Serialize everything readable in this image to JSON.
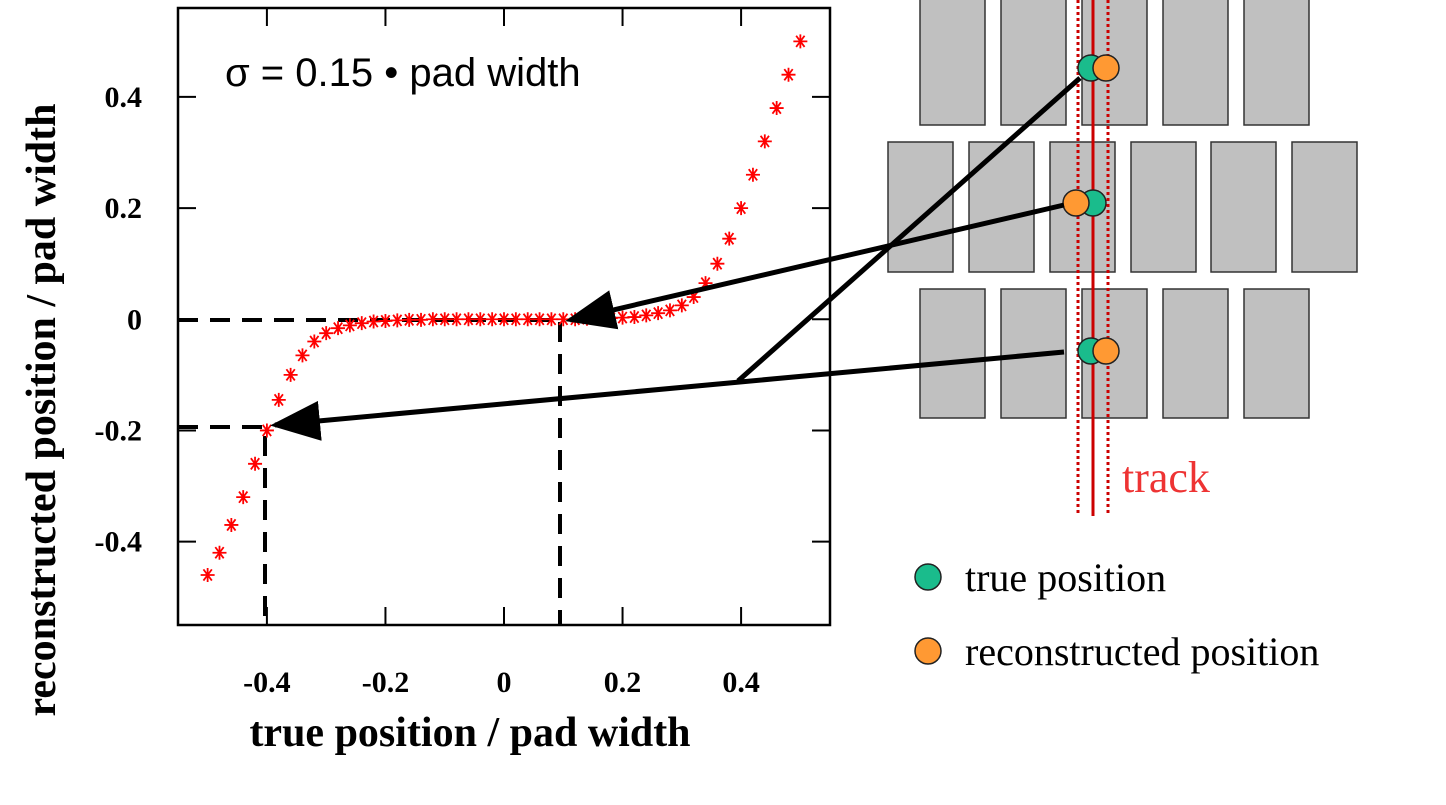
{
  "chart_data": {
    "type": "scatter",
    "annotation": "σ = 0.15 • pad width",
    "x_label": "true position / pad width",
    "y_label": "reconstructed position / pad width",
    "color": "#ff0000",
    "xlim": [
      -0.55,
      0.55
    ],
    "ylim": [
      -0.55,
      0.56
    ],
    "xticks": [
      -0.4,
      -0.2,
      0,
      0.2,
      0.4
    ],
    "yticks": [
      -0.4,
      -0.2,
      0,
      0.2,
      0.4
    ],
    "x": [
      -0.5,
      -0.48,
      -0.46,
      -0.44,
      -0.42,
      -0.4,
      -0.38,
      -0.36,
      -0.34,
      -0.32,
      -0.3,
      -0.28,
      -0.26,
      -0.24,
      -0.22,
      -0.2,
      -0.18,
      -0.16,
      -0.14,
      -0.12,
      -0.1,
      -0.08,
      -0.06,
      -0.04,
      -0.02,
      0,
      0.02,
      0.04,
      0.06,
      0.08,
      0.1,
      0.12,
      0.14,
      0.16,
      0.18,
      0.2,
      0.22,
      0.24,
      0.26,
      0.28,
      0.3,
      0.32,
      0.34,
      0.36,
      0.38,
      0.4,
      0.42,
      0.44,
      0.46,
      0.48,
      0.5
    ],
    "values": [
      -0.46,
      -0.42,
      -0.37,
      -0.32,
      -0.26,
      -0.2,
      -0.145,
      -0.1,
      -0.065,
      -0.04,
      -0.025,
      -0.016,
      -0.011,
      -0.007,
      -0.004,
      -0.003,
      -0.002,
      -0.001,
      -0.001,
      0,
      0,
      0,
      0,
      0,
      0,
      0,
      0,
      0,
      0,
      0,
      0,
      0,
      0.001,
      0.001,
      0.002,
      0.003,
      0.004,
      0.007,
      0.011,
      0.016,
      0.025,
      0.04,
      0.065,
      0.1,
      0.145,
      0.2,
      0.26,
      0.32,
      0.38,
      0.44,
      0.5
    ]
  },
  "diagram": {
    "track_label": "track",
    "legend": [
      {
        "label": "true position",
        "color": "#1abc8c"
      },
      {
        "label": "reconstructed position",
        "color": "#ff9933"
      }
    ]
  }
}
